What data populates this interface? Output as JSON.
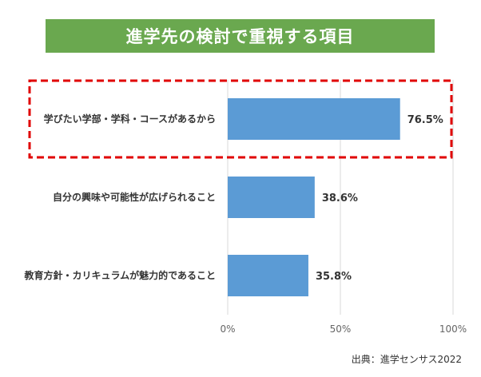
{
  "title": "進学先の検討で重視する項目",
  "source": "出典：進学センサス2022",
  "colors": {
    "banner": "#6aa84f",
    "bar": "#5b9bd5",
    "highlight": "#e00000",
    "grid": "#d9d9d9"
  },
  "chart_data": {
    "type": "bar",
    "orientation": "horizontal",
    "categories": [
      "学びたい学部・学科・コースがあるから",
      "自分の興味や可能性が広げられること",
      "教育方針・カリキュラムが魅力的であること"
    ],
    "values": [
      76.5,
      38.6,
      35.8
    ],
    "value_labels": [
      "76.5%",
      "38.6%",
      "35.8%"
    ],
    "xlim": [
      0,
      100
    ],
    "ticks": [
      0,
      50,
      100
    ],
    "tick_labels": [
      "0%",
      "50%",
      "100%"
    ],
    "grid": true,
    "highlighted_category_index": 0
  }
}
